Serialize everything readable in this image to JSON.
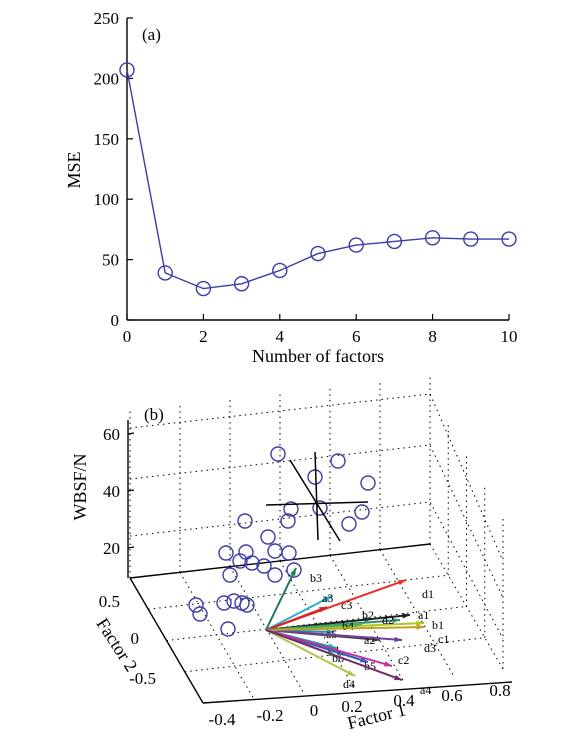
{
  "panel_a": {
    "panel_label": "(a)",
    "chart_data": {
      "type": "line",
      "xlabel": "Number of factors",
      "ylabel": "MSE",
      "xlim": [
        0,
        10
      ],
      "ylim": [
        0,
        250
      ],
      "xticks": [
        0,
        2,
        4,
        6,
        8,
        10
      ],
      "yticks": [
        0,
        50,
        100,
        150,
        200,
        250
      ],
      "x": [
        0,
        1,
        2,
        3,
        4,
        5,
        6,
        7,
        8,
        9,
        10
      ],
      "y": [
        207,
        39,
        26,
        30,
        41,
        55,
        62,
        65,
        68,
        67,
        67
      ],
      "marker": "open-circle",
      "color": "#3c3ca8"
    }
  },
  "panel_b": {
    "panel_label": "(b)",
    "chart_data": {
      "type": "scatter",
      "xlabel": "Factor 1",
      "ylabel": "Factor 2",
      "zlabel": "WBSF/N",
      "xticks": [
        "-0.4",
        "-0.2",
        "0",
        "0.2",
        "0.4",
        "0.6",
        "0.8"
      ],
      "yticks": [
        "-0.5",
        "0",
        "0.5"
      ],
      "zticks": [
        "20",
        "40",
        "60"
      ],
      "grid": true,
      "marker_color": "#3c3ca8",
      "vectors": [
        {
          "label": "d1",
          "color": "#e8302a"
        },
        {
          "label": "b3",
          "color": "#1a7a5a"
        },
        {
          "label": "a3",
          "color": "#28b0c8"
        },
        {
          "label": "c3",
          "color": "#d82020"
        },
        {
          "label": "b2",
          "color": "#20a090"
        },
        {
          "label": "a1",
          "color": "#222222"
        },
        {
          "label": "b1",
          "color": "#a8c820"
        },
        {
          "label": "d2",
          "color": "#3a8a70"
        },
        {
          "label": "b4",
          "color": "#40b060"
        },
        {
          "label": "a5",
          "color": "#2a8aa8"
        },
        {
          "label": "a2",
          "color": "#444444"
        },
        {
          "label": "d3",
          "color": "#7040a0"
        },
        {
          "label": "c1",
          "color": "#c0a020"
        },
        {
          "label": "c4",
          "color": "#20a0a0"
        },
        {
          "label": "b6",
          "color": "#50b040"
        },
        {
          "label": "b5",
          "color": "#2a60b0"
        },
        {
          "label": "c2",
          "color": "#c030a0"
        },
        {
          "label": "d4",
          "color": "#b8c050"
        },
        {
          "label": "a4",
          "color": "#703070"
        }
      ]
    }
  }
}
